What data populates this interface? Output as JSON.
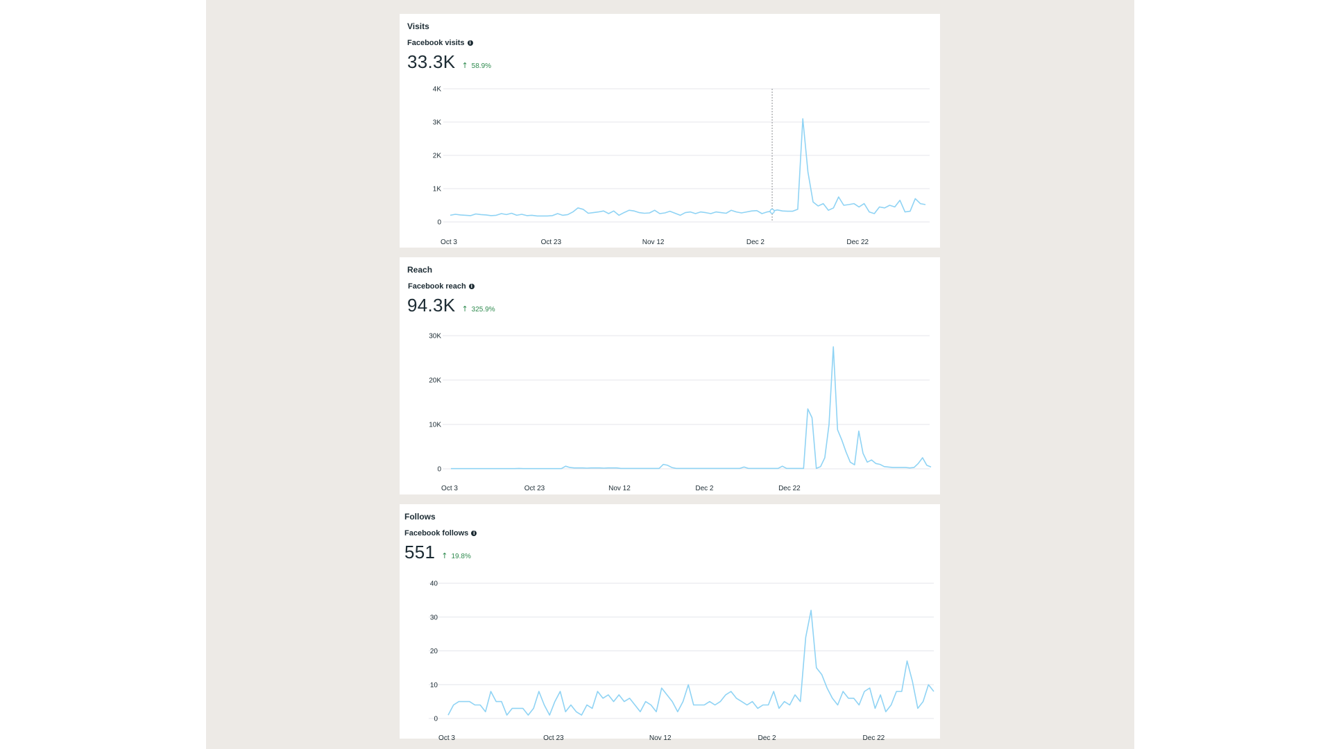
{
  "cards": [
    {
      "title": "Visits",
      "metric_label": "Facebook visits",
      "info_icon": "info-icon",
      "value": "33.3K",
      "change": "58.9%",
      "change_direction": "up",
      "change_color": "#2e8a4e"
    },
    {
      "title": "Reach",
      "metric_label": "Facebook reach",
      "info_icon": "info-icon",
      "value": "94.3K",
      "change": "325.9%",
      "change_direction": "up",
      "change_color": "#2e8a4e"
    },
    {
      "title": "Follows",
      "metric_label": "Facebook follows",
      "info_icon": "info-icon",
      "value": "551",
      "change": "19.8%",
      "change_direction": "up",
      "change_color": "#2e8a4e"
    }
  ],
  "chart_data": [
    {
      "type": "line",
      "series_color": "#8fd3f4",
      "ylim": [
        0,
        4000
      ],
      "yticks": [
        0,
        1000,
        2000,
        3000,
        4000
      ],
      "ytick_labels": [
        "0",
        "1K",
        "2K",
        "3K",
        "4K"
      ],
      "xtick_positions": [
        0,
        20,
        40,
        60,
        80
      ],
      "xtick_labels": [
        "Oct 3",
        "Oct 23",
        "Nov 12",
        "Dec 2",
        "Dec 22"
      ],
      "hover_index": 63,
      "grid": true,
      "values": [
        200,
        230,
        210,
        200,
        190,
        240,
        220,
        210,
        190,
        200,
        250,
        220,
        260,
        200,
        230,
        190,
        200,
        180,
        180,
        180,
        190,
        250,
        200,
        220,
        300,
        420,
        380,
        260,
        280,
        300,
        330,
        250,
        330,
        200,
        280,
        350,
        330,
        280,
        260,
        270,
        350,
        250,
        270,
        320,
        260,
        200,
        280,
        300,
        250,
        300,
        280,
        250,
        300,
        280,
        260,
        350,
        300,
        270,
        300,
        330,
        340,
        250,
        300,
        320,
        360,
        330,
        320,
        320,
        380,
        3100,
        1500,
        600,
        480,
        550,
        350,
        420,
        750,
        500,
        520,
        550,
        450,
        550,
        300,
        250,
        450,
        420,
        500,
        450,
        650,
        300,
        320,
        700,
        550,
        520
      ]
    },
    {
      "type": "line",
      "series_color": "#8fd3f4",
      "ylim": [
        0,
        30000
      ],
      "yticks": [
        0,
        10000,
        20000,
        30000
      ],
      "ytick_labels": [
        "0",
        "10K",
        "20K",
        "30K"
      ],
      "xtick_positions": [
        0,
        20,
        40,
        60,
        80
      ],
      "xtick_labels": [
        "Oct 3",
        "Oct 23",
        "Nov 12",
        "Dec 2",
        "Dec 22"
      ],
      "grid": true,
      "values": [
        50,
        50,
        50,
        50,
        50,
        50,
        50,
        50,
        50,
        50,
        50,
        50,
        50,
        50,
        50,
        50,
        100,
        50,
        50,
        50,
        50,
        50,
        50,
        50,
        50,
        50,
        50,
        600,
        300,
        200,
        200,
        200,
        150,
        200,
        200,
        200,
        150,
        200,
        200,
        200,
        100,
        100,
        100,
        100,
        100,
        100,
        100,
        100,
        100,
        100,
        1000,
        800,
        300,
        100,
        100,
        100,
        100,
        100,
        100,
        100,
        100,
        100,
        100,
        100,
        100,
        100,
        100,
        100,
        100,
        400,
        100,
        100,
        100,
        100,
        100,
        100,
        100,
        100,
        600,
        100,
        100,
        100,
        100,
        100,
        13500,
        11500,
        100,
        500,
        2500,
        10000,
        27500,
        8800,
        6500,
        3800,
        1500,
        900,
        8500,
        3500,
        1500,
        2000,
        1200,
        1000,
        500,
        400,
        300,
        300,
        300,
        300,
        200,
        300,
        1200,
        2500,
        800,
        400
      ]
    },
    {
      "type": "line",
      "series_color": "#8fd3f4",
      "ylim": [
        0,
        40
      ],
      "yticks": [
        0,
        10,
        20,
        30,
        40
      ],
      "ytick_labels": [
        "0",
        "10",
        "20",
        "30",
        "40"
      ],
      "xtick_positions": [
        0,
        20,
        40,
        60,
        80
      ],
      "xtick_labels": [
        "Oct 3",
        "Oct 23",
        "Nov 12",
        "Dec 2",
        "Dec 22"
      ],
      "grid": true,
      "values": [
        1,
        4,
        5,
        5,
        5,
        4,
        4,
        2,
        8,
        5,
        5,
        1,
        3,
        3,
        3,
        1,
        3,
        8,
        4,
        1,
        5,
        8,
        2,
        4,
        2,
        1,
        4,
        3,
        8,
        6,
        7,
        5,
        7,
        5,
        6,
        4,
        2,
        5,
        4,
        2,
        9,
        7,
        5,
        2,
        5,
        10,
        4,
        4,
        4,
        5,
        4,
        5,
        7,
        8,
        6,
        5,
        4,
        5,
        3,
        4,
        4,
        8,
        3,
        5,
        4,
        7,
        5,
        24,
        32,
        15,
        13,
        9,
        6,
        4,
        8,
        6,
        6,
        4,
        8,
        9,
        3,
        7,
        2,
        4,
        8,
        8,
        17,
        11,
        3,
        5,
        10,
        8
      ]
    }
  ]
}
